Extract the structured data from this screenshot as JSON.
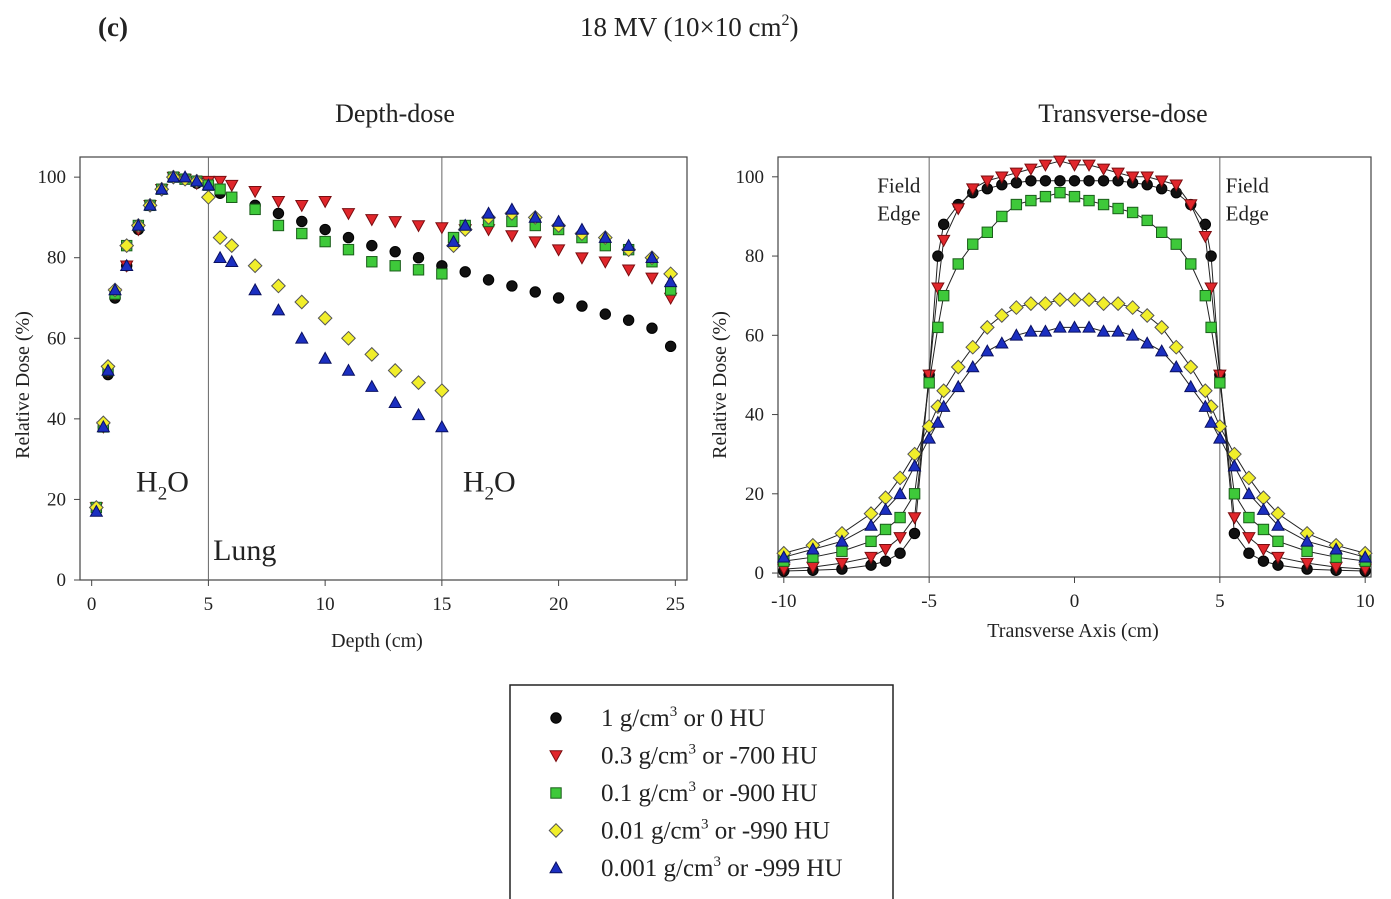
{
  "figure": {
    "panel_label": "(c)",
    "title_main": "18 MV (10×10 cm",
    "title_sup": "2",
    "title_end": ")"
  },
  "legend": [
    {
      "label_pre": "1 g/cm",
      "sup": "3",
      "label_post": " or 0 HU",
      "marker": "circle",
      "color": "#111111"
    },
    {
      "label_pre": "0.3 g/cm",
      "sup": "3",
      "label_post": " or -700 HU",
      "marker": "triangle-down",
      "color": "#e0262b"
    },
    {
      "label_pre": "0.1 g/cm",
      "sup": "3",
      "label_post": " or -900 HU",
      "marker": "square",
      "color": "#3ec93a"
    },
    {
      "label_pre": "0.01 g/cm",
      "sup": "3",
      "label_post": " or -990 HU",
      "marker": "diamond",
      "color": "#f1ee2a"
    },
    {
      "label_pre": "0.001 g/cm",
      "sup": "3",
      "label_post": " or -999 HU",
      "marker": "triangle-up",
      "color": "#1b2fc0"
    }
  ],
  "chart_data": [
    {
      "type": "scatter",
      "title": "Depth-dose",
      "xlabel": "Depth (cm)",
      "ylabel": "Relative Dose (%)",
      "xlim": [
        -0.5,
        25.5
      ],
      "ylim": [
        0,
        105
      ],
      "xticks": [
        0,
        5,
        10,
        15,
        20,
        25
      ],
      "yticks": [
        0,
        20,
        40,
        60,
        80,
        100
      ],
      "vlines": [
        5,
        15
      ],
      "annotations": [
        {
          "text": "H",
          "sub": "2",
          "tail": "O",
          "x": 1.9,
          "y": 22
        },
        {
          "text": "Lung",
          "sub": "",
          "tail": "",
          "x": 5.2,
          "y": 5
        },
        {
          "text": "H",
          "sub": "2",
          "tail": "O",
          "x": 15.9,
          "y": 22
        }
      ],
      "series": [
        {
          "name": "1 g/cm3 or 0 HU",
          "x": [
            0.2,
            0.5,
            0.7,
            1.0,
            1.5,
            2.0,
            2.5,
            3.0,
            3.5,
            4.0,
            4.5,
            5.0,
            5.5,
            6,
            7,
            8,
            9,
            10,
            11,
            12,
            13,
            14,
            15,
            16,
            17,
            18,
            19,
            20,
            21,
            22,
            23,
            24,
            24.8
          ],
          "y": [
            18,
            38,
            51,
            70,
            78,
            87,
            93,
            97,
            100,
            99.5,
            98.5,
            98,
            96,
            95,
            93,
            91,
            89,
            87,
            85,
            83,
            81.5,
            80,
            78,
            76.5,
            74.5,
            73,
            71.5,
            70,
            68,
            66,
            64.5,
            62.5,
            58
          ]
        },
        {
          "name": "0.3 g/cm3 or -700 HU",
          "x": [
            0.2,
            0.5,
            0.7,
            1.0,
            1.5,
            2.0,
            2.5,
            3.0,
            3.5,
            4.0,
            4.5,
            5.0,
            5.5,
            6,
            7,
            8,
            9,
            10,
            11,
            12,
            13,
            14,
            15,
            16,
            17,
            18,
            19,
            20,
            21,
            22,
            23,
            24,
            24.8
          ],
          "y": [
            18,
            38,
            52,
            71,
            78,
            87,
            93,
            97,
            100,
            99.5,
            98.5,
            99,
            99,
            98,
            96.5,
            94,
            93,
            94,
            91,
            89.5,
            89,
            88,
            87.5,
            87,
            87,
            85.5,
            84,
            82,
            80,
            79,
            77,
            75,
            70
          ]
        },
        {
          "name": "0.1 g/cm3 or -900 HU",
          "x": [
            0.2,
            0.5,
            0.7,
            1.0,
            1.5,
            2.0,
            2.5,
            3.0,
            3.5,
            4.0,
            4.5,
            5.0,
            5.5,
            6,
            7,
            8,
            9,
            10,
            11,
            12,
            13,
            14,
            15,
            15.5,
            16,
            17,
            18,
            19,
            20,
            21,
            22,
            23,
            24,
            24.8
          ],
          "y": [
            18,
            38,
            52,
            71,
            83,
            88,
            93,
            97,
            100,
            99.5,
            99,
            98,
            97,
            95,
            92,
            88,
            86,
            84,
            82,
            79,
            78,
            77,
            76,
            85,
            88,
            89,
            89,
            88,
            87,
            85,
            83,
            82,
            79,
            72
          ]
        },
        {
          "name": "0.01 g/cm3 or -990 HU",
          "x": [
            0.2,
            0.5,
            0.7,
            1.0,
            1.5,
            2.0,
            2.5,
            3.0,
            3.5,
            4.0,
            4.5,
            5.0,
            5.5,
            6,
            7,
            8,
            9,
            10,
            11,
            12,
            13,
            14,
            15,
            15.5,
            16,
            17,
            18,
            19,
            20,
            21,
            22,
            23,
            24,
            24.8
          ],
          "y": [
            18,
            39,
            53,
            72,
            83,
            88,
            93,
            97,
            100,
            99.5,
            99,
            95,
            85,
            83,
            78,
            73,
            69,
            65,
            60,
            56,
            52,
            49,
            47,
            83,
            87,
            90,
            91,
            90,
            88,
            86,
            85,
            82,
            80,
            76
          ]
        },
        {
          "name": "0.001 g/cm3 or -999 HU",
          "x": [
            0.2,
            0.5,
            0.7,
            1.0,
            1.5,
            2.0,
            2.5,
            3.0,
            3.5,
            4.0,
            4.5,
            5.0,
            5.5,
            6,
            7,
            8,
            9,
            10,
            11,
            12,
            13,
            14,
            15,
            15.5,
            16,
            17,
            18,
            19,
            20,
            21,
            22,
            23,
            24,
            24.8
          ],
          "y": [
            17,
            38,
            52,
            72,
            78,
            88,
            93,
            97,
            100,
            100,
            99,
            98,
            80,
            79,
            72,
            67,
            60,
            55,
            52,
            48,
            44,
            41,
            38,
            84,
            88,
            91,
            92,
            90,
            89,
            87,
            85,
            83,
            80,
            74
          ]
        }
      ]
    },
    {
      "type": "line",
      "title": "Transverse-dose",
      "xlabel": "Transverse Axis (cm)",
      "ylabel": "Relative Dose (%)",
      "xlim": [
        -10.2,
        10.2
      ],
      "ylim": [
        -1,
        105
      ],
      "xticks": [
        -10,
        -5,
        0,
        5,
        10
      ],
      "yticks": [
        0,
        20,
        40,
        60,
        80,
        100
      ],
      "vlines": [
        -5,
        5
      ],
      "annotations": [
        {
          "text": "Field",
          "x": -5.3,
          "y": 96,
          "align": "end"
        },
        {
          "text": "Edge",
          "x": -5.3,
          "y": 89,
          "align": "end"
        },
        {
          "text": "Field",
          "x": 5.2,
          "y": 96,
          "align": "start"
        },
        {
          "text": "Edge",
          "x": 5.2,
          "y": 89,
          "align": "start"
        }
      ],
      "x": [
        -10,
        -9,
        -8,
        -7,
        -6.5,
        -6,
        -5.5,
        -5,
        -4.7,
        -4.5,
        -4,
        -3.5,
        -3,
        -2.5,
        -2,
        -1.5,
        -1,
        -0.5,
        0,
        0.5,
        1,
        1.5,
        2,
        2.5,
        3,
        3.5,
        4,
        4.5,
        4.7,
        5,
        5.5,
        6,
        6.5,
        7,
        8,
        9,
        10
      ],
      "series": [
        {
          "name": "1 g/cm3 or 0 HU",
          "y": [
            0.5,
            0.7,
            1,
            2,
            3,
            5,
            10,
            50,
            80,
            88,
            93,
            96,
            97,
            98,
            98.5,
            99,
            99,
            99,
            99,
            99,
            99,
            99,
            98.5,
            98,
            97,
            96,
            93,
            88,
            80,
            50,
            10,
            5,
            3,
            2,
            1,
            0.7,
            0.5
          ]
        },
        {
          "name": "0.3 g/cm3 or -700 HU",
          "y": [
            1,
            1.5,
            2.5,
            4,
            6,
            9,
            14,
            50,
            72,
            84,
            92,
            97,
            99,
            100,
            101,
            102,
            103,
            104,
            103,
            103,
            102,
            101,
            100,
            100,
            99,
            98,
            93,
            85,
            72,
            50,
            14,
            9,
            6,
            4,
            2.5,
            1.5,
            1
          ]
        },
        {
          "name": "0.1 g/cm3 or -900 HU",
          "y": [
            3,
            4,
            5.5,
            8,
            11,
            14,
            20,
            48,
            62,
            70,
            78,
            83,
            86,
            90,
            93,
            94,
            95,
            96,
            95,
            94,
            93,
            92,
            91,
            89,
            86,
            83,
            78,
            70,
            62,
            48,
            20,
            14,
            11,
            8,
            5.5,
            4,
            3
          ]
        },
        {
          "name": "0.01 g/cm3 or -990 HU",
          "y": [
            5,
            7,
            10,
            15,
            19,
            24,
            30,
            37,
            42,
            46,
            52,
            57,
            62,
            65,
            67,
            68,
            68,
            69,
            69,
            69,
            68,
            68,
            67,
            65,
            62,
            57,
            52,
            46,
            42,
            37,
            30,
            24,
            19,
            15,
            10,
            7,
            5
          ]
        },
        {
          "name": "0.001 g/cm3 or -999 HU",
          "y": [
            4,
            6,
            8,
            12,
            16,
            20,
            27,
            34,
            38,
            42,
            47,
            52,
            56,
            58,
            60,
            61,
            61,
            62,
            62,
            62,
            61,
            61,
            60,
            58,
            56,
            52,
            47,
            42,
            38,
            34,
            27,
            20,
            16,
            12,
            8,
            6,
            4
          ]
        }
      ]
    }
  ]
}
